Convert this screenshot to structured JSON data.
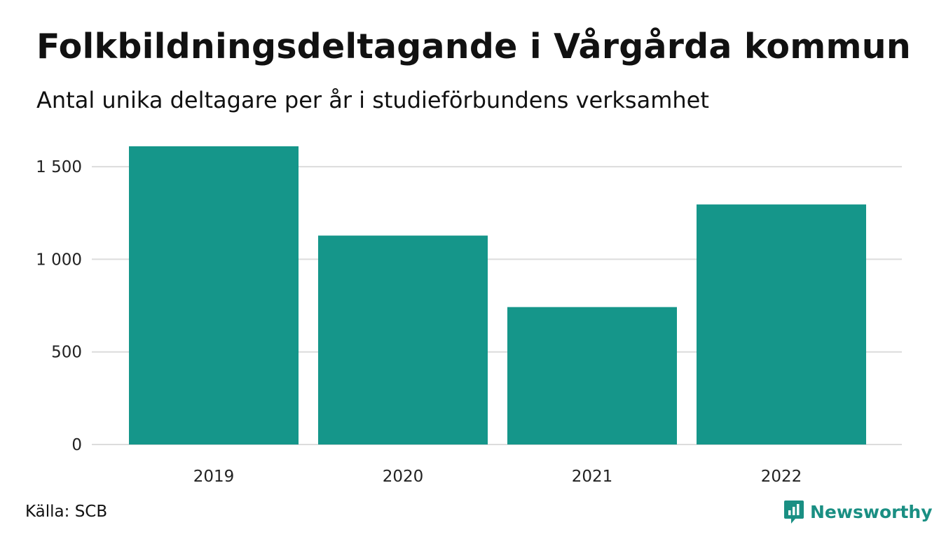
{
  "header": {
    "title": "Folkbildningsdeltagande i Vårgårda kommun",
    "subtitle": "Antal unika deltagare per år i studieförbundens verksamhet"
  },
  "footer": {
    "source": "Källa: SCB",
    "brand": "Newsworthy",
    "brand_icon": "newsworthy-logo-icon"
  },
  "colors": {
    "bar": "#15968a",
    "grid": "#dcdcdc",
    "brand": "#1a8f83"
  },
  "chart_data": {
    "type": "bar",
    "categories": [
      "2019",
      "2020",
      "2021",
      "2022"
    ],
    "values": [
      1610,
      1128,
      742,
      1296
    ],
    "ylim": [
      0,
      1610
    ],
    "yticks": [
      0,
      500,
      1000,
      1500
    ],
    "ytick_labels": [
      "0",
      "500",
      "1 000",
      "1 500"
    ],
    "grid": true,
    "legend": "none"
  }
}
